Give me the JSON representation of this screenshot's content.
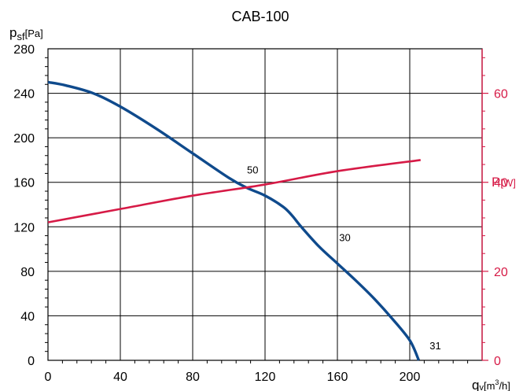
{
  "chart_data": {
    "type": "line",
    "title": "CAB-100",
    "ylabel": {
      "main": "p",
      "sub": "sf",
      "unit": "[Pa]"
    },
    "xlabel": {
      "main": "q",
      "sub": "v",
      "unit_pre": "[m",
      "unit_sup": "3",
      "unit_post": "/h]"
    },
    "y2label": {
      "main": "P",
      "unit": "[W]"
    },
    "xlim": [
      0,
      240
    ],
    "ylim": [
      0,
      280
    ],
    "y2lim": [
      0,
      70
    ],
    "x_ticks": [
      0,
      40,
      80,
      120,
      160,
      200
    ],
    "y_ticks": [
      0,
      40,
      80,
      120,
      160,
      200,
      240,
      280
    ],
    "y2_ticks": [
      0,
      20,
      40,
      60
    ],
    "grid": true,
    "series": [
      {
        "axis": "left",
        "color": "#0f4a8c",
        "x": [
          0,
          10,
          25,
          40,
          60,
          80,
          100,
          110,
          120,
          130,
          135,
          140,
          150,
          160,
          170,
          180,
          190,
          200,
          205
        ],
        "y": [
          250,
          247,
          240,
          228,
          208,
          186,
          164,
          155,
          148,
          138,
          130,
          120,
          102,
          87,
          72,
          56,
          38,
          18,
          0
        ]
      },
      {
        "axis": "right",
        "color": "#d61a46",
        "x": [
          0,
          40,
          80,
          120,
          160,
          206
        ],
        "y": [
          31,
          34,
          37,
          39.5,
          42.5,
          45
        ]
      }
    ],
    "annotations": [
      {
        "text": "50",
        "x": 110,
        "y": 168
      },
      {
        "text": "30",
        "x": 161,
        "y": 107
      },
      {
        "text": "31",
        "x": 211,
        "y": 10
      }
    ],
    "colors": {
      "left_axis": "#000000",
      "right_axis": "#d61a46",
      "grid": "#000000"
    }
  }
}
